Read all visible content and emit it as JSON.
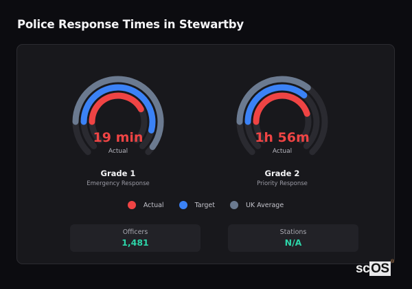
{
  "page": {
    "title": "Police Response Times in Stewartby"
  },
  "gauges": [
    {
      "value_label": "19 min",
      "sub_label": "Actual",
      "title": "Grade 1",
      "description": "Emergency Response",
      "arcs": {
        "uk_average": 0.8,
        "target": 0.72,
        "actual": 0.56
      }
    },
    {
      "value_label": "1h 56m",
      "sub_label": "Actual",
      "title": "Grade 2",
      "description": "Priority Response",
      "arcs": {
        "uk_average": 0.47,
        "target": 0.48,
        "actual": 0.6
      }
    }
  ],
  "legend": [
    {
      "label": "Actual",
      "color": "#ef4444"
    },
    {
      "label": "Target",
      "color": "#3b82f6"
    },
    {
      "label": "UK Average",
      "color": "#6b7a90"
    }
  ],
  "stats": [
    {
      "label": "Officers",
      "value": "1,481"
    },
    {
      "label": "Stations",
      "value": "N/A"
    }
  ],
  "logo": {
    "text_a": "sc",
    "text_b": "OS",
    "mark": "®"
  },
  "colors": {
    "actual": "#ef4444",
    "target": "#3b82f6",
    "uk_average": "#6b7a90",
    "track": "#2a2a30",
    "accent_value": "#2dd4a8"
  },
  "chart_data": {
    "type": "radial-bar",
    "title": "Police Response Times in Stewartby",
    "categories": [
      "Grade 1 (Emergency Response)",
      "Grade 2 (Priority Response)"
    ],
    "series": [
      {
        "name": "Actual",
        "color": "#ef4444",
        "labels": [
          "19 min",
          "1h 56m"
        ],
        "fraction_of_track": [
          0.56,
          0.6
        ]
      },
      {
        "name": "Target",
        "color": "#3b82f6",
        "fraction_of_track": [
          0.72,
          0.48
        ]
      },
      {
        "name": "UK Average",
        "color": "#6b7a90",
        "fraction_of_track": [
          0.8,
          0.47
        ]
      }
    ],
    "legend_position": "bottom",
    "grid": false
  }
}
